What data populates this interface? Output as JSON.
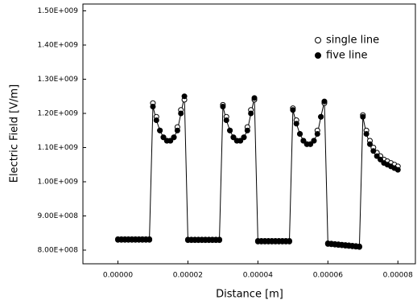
{
  "chart_data": {
    "type": "scatter",
    "xlabel": "Distance [m]",
    "ylabel": "Electric Field [V/m]",
    "x": [
      0,
      1e-06,
      2e-06,
      3e-06,
      4e-06,
      5e-06,
      6e-06,
      7e-06,
      8e-06,
      9e-06,
      1e-05,
      1.1e-05,
      1.2e-05,
      1.3e-05,
      1.4e-05,
      1.5e-05,
      1.6e-05,
      1.7e-05,
      1.8e-05,
      1.9e-05,
      2e-05,
      2.1e-05,
      2.2e-05,
      2.3e-05,
      2.4e-05,
      2.5e-05,
      2.6e-05,
      2.7e-05,
      2.8e-05,
      2.9e-05,
      3e-05,
      3.1e-05,
      3.2e-05,
      3.3e-05,
      3.4e-05,
      3.5e-05,
      3.6e-05,
      3.7e-05,
      3.8e-05,
      3.9e-05,
      4e-05,
      4.1e-05,
      4.2e-05,
      4.3e-05,
      4.4e-05,
      4.5e-05,
      4.6e-05,
      4.7e-05,
      4.8e-05,
      4.9e-05,
      5e-05,
      5.1e-05,
      5.2e-05,
      5.3e-05,
      5.4e-05,
      5.5e-05,
      5.6e-05,
      5.7e-05,
      5.8e-05,
      5.9e-05,
      6e-05,
      6.1e-05,
      6.2e-05,
      6.3e-05,
      6.4e-05,
      6.5e-05,
      6.6e-05,
      6.7e-05,
      6.8e-05,
      6.9e-05,
      7e-05,
      7.1e-05,
      7.2e-05,
      7.3e-05,
      7.4e-05,
      7.5e-05,
      7.6e-05,
      7.7e-05,
      7.8e-05,
      7.9e-05,
      8e-05
    ],
    "series": [
      {
        "name": "single line",
        "color": "#000000",
        "filled": false,
        "values": [
          830000000.0,
          830000000.0,
          830000000.0,
          830000000.0,
          830000000.0,
          830000000.0,
          830000000.0,
          830000000.0,
          830000000.0,
          830000000.0,
          1230000000.0,
          1190000000.0,
          1150000000.0,
          1130000000.0,
          1120000000.0,
          1120000000.0,
          1130000000.0,
          1160000000.0,
          1210000000.0,
          1240000000.0,
          829000000.0,
          829000000.0,
          829000000.0,
          829000000.0,
          829000000.0,
          829000000.0,
          829000000.0,
          829000000.0,
          829000000.0,
          829000000.0,
          1225000000.0,
          1190000000.0,
          1150000000.0,
          1130000000.0,
          1120000000.0,
          1120000000.0,
          1130000000.0,
          1160000000.0,
          1210000000.0,
          1240000000.0,
          825000000.0,
          825000000.0,
          825000000.0,
          825000000.0,
          825000000.0,
          825000000.0,
          825000000.0,
          825000000.0,
          825000000.0,
          825000000.0,
          1215000000.0,
          1180000000.0,
          1140000000.0,
          1120000000.0,
          1110000000.0,
          1110000000.0,
          1120000000.0,
          1150000000.0,
          1190000000.0,
          1230000000.0,
          818000000.0,
          817000000.0,
          816000000.0,
          815000000.0,
          814000000.0,
          813000000.0,
          812000000.0,
          811000000.0,
          810000000.0,
          809000000.0,
          1195000000.0,
          1150000000.0,
          1120000000.0,
          1100000000.0,
          1085000000.0,
          1075000000.0,
          1065000000.0,
          1060000000.0,
          1055000000.0,
          1050000000.0,
          1045000000.0
        ]
      },
      {
        "name": "five line",
        "color": "#000000",
        "filled": true,
        "line": true,
        "values": [
          832000000.0,
          832000000.0,
          832000000.0,
          832000000.0,
          832000000.0,
          832000000.0,
          832000000.0,
          832000000.0,
          832000000.0,
          832000000.0,
          1220000000.0,
          1180000000.0,
          1150000000.0,
          1130000000.0,
          1120000000.0,
          1120000000.0,
          1130000000.0,
          1150000000.0,
          1200000000.0,
          1250000000.0,
          831000000.0,
          831000000.0,
          831000000.0,
          831000000.0,
          831000000.0,
          831000000.0,
          831000000.0,
          831000000.0,
          831000000.0,
          831000000.0,
          1220000000.0,
          1180000000.0,
          1150000000.0,
          1130000000.0,
          1120000000.0,
          1120000000.0,
          1130000000.0,
          1150000000.0,
          1200000000.0,
          1245000000.0,
          827000000.0,
          827000000.0,
          827000000.0,
          827000000.0,
          827000000.0,
          827000000.0,
          827000000.0,
          827000000.0,
          827000000.0,
          827000000.0,
          1210000000.0,
          1170000000.0,
          1140000000.0,
          1120000000.0,
          1110000000.0,
          1110000000.0,
          1120000000.0,
          1140000000.0,
          1190000000.0,
          1235000000.0,
          820000000.0,
          819000000.0,
          818000000.0,
          817000000.0,
          816000000.0,
          815000000.0,
          814000000.0,
          813000000.0,
          812000000.0,
          811000000.0,
          1190000000.0,
          1140000000.0,
          1110000000.0,
          1090000000.0,
          1075000000.0,
          1065000000.0,
          1055000000.0,
          1050000000.0,
          1045000000.0,
          1040000000.0,
          1035000000.0
        ]
      }
    ],
    "xlim": [
      -1e-05,
      8.5e-05
    ],
    "xticks": [
      {
        "value": 0,
        "label": "0.00000"
      },
      {
        "value": 2e-05,
        "label": "0.00002"
      },
      {
        "value": 4e-05,
        "label": "0.00004"
      },
      {
        "value": 6e-05,
        "label": "0.00006"
      },
      {
        "value": 8e-05,
        "label": "0.00008"
      }
    ],
    "ylim": [
      760000000.0,
      1520000000.0
    ],
    "yticks": [
      {
        "value": 800000000.0,
        "label": "8.00E+008"
      },
      {
        "value": 900000000.0,
        "label": "9.00E+008"
      },
      {
        "value": 1000000000.0,
        "label": "1.00E+009"
      },
      {
        "value": 1100000000.0,
        "label": "1.10E+009"
      },
      {
        "value": 1200000000.0,
        "label": "1.20E+009"
      },
      {
        "value": 1300000000.0,
        "label": "1.30E+009"
      },
      {
        "value": 1400000000.0,
        "label": "1.40E+009"
      },
      {
        "value": 1500000000.0,
        "label": "1.50E+009"
      }
    ],
    "legend": "upper-right"
  }
}
